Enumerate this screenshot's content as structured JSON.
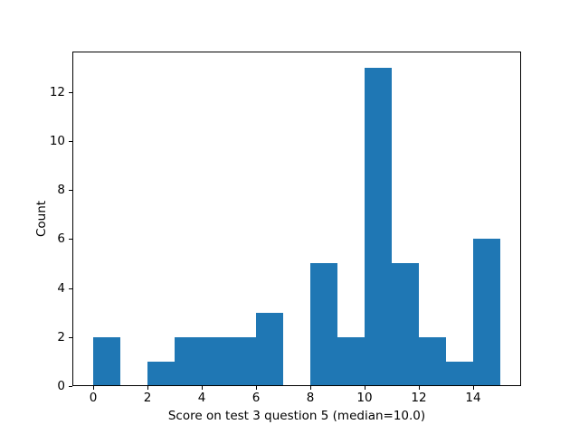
{
  "figure": {
    "background_color": "#ffffff",
    "text_color": "#000000"
  },
  "chart_data": {
    "type": "bar",
    "subtype": "histogram",
    "title": "",
    "xlabel": "Score on test 3 question 5 (median=10.0)",
    "ylabel": "Count",
    "bar_color": "#1f77b4",
    "bin_edges": [
      0,
      1,
      2,
      3,
      4,
      5,
      6,
      7,
      8,
      9,
      10,
      11,
      12,
      13,
      14,
      15
    ],
    "counts": [
      2,
      0,
      1,
      2,
      2,
      2,
      3,
      0,
      5,
      2,
      13,
      5,
      2,
      1,
      6
    ],
    "xticks": [
      0,
      2,
      4,
      6,
      8,
      10,
      12,
      14
    ],
    "yticks": [
      0,
      2,
      4,
      6,
      8,
      10,
      12
    ],
    "xlim": [
      -0.75,
      15.75
    ],
    "ylim": [
      0,
      13.65
    ],
    "grid": false,
    "legend": null
  }
}
